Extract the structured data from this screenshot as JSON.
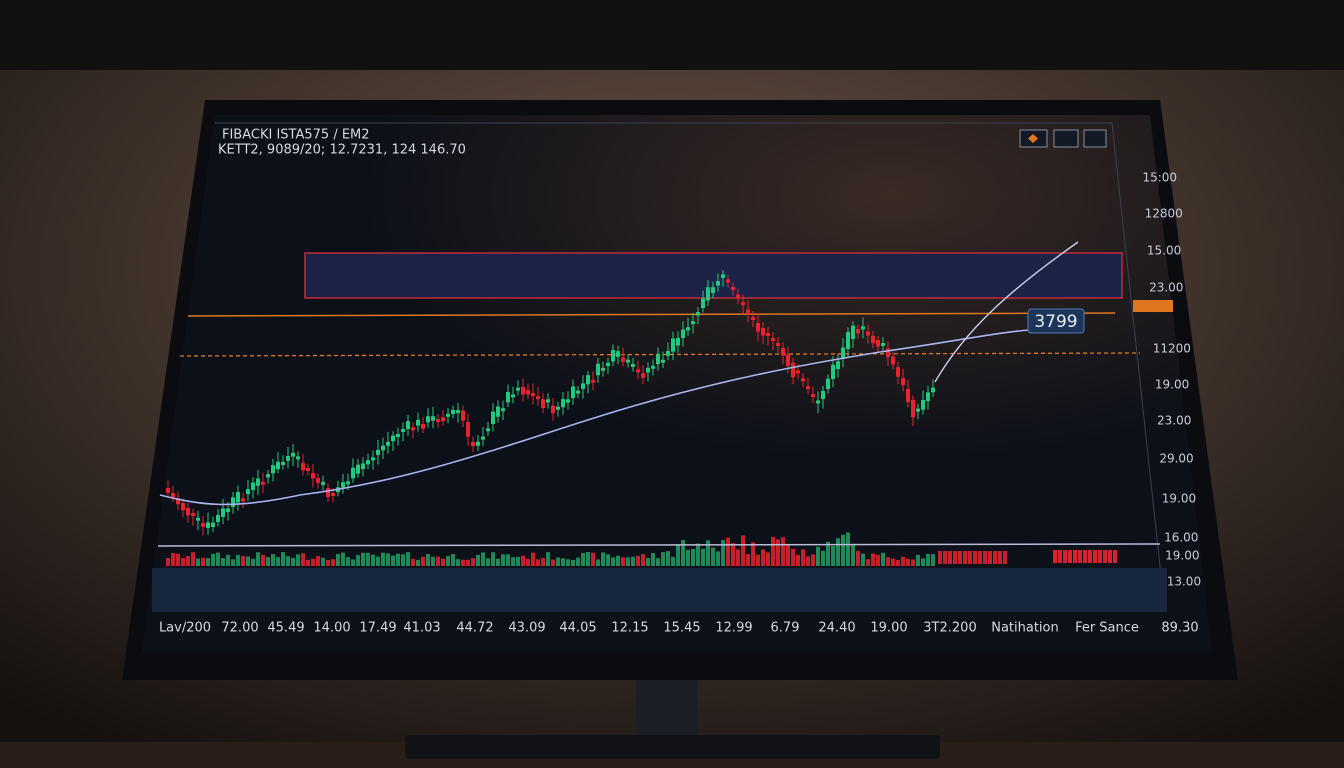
{
  "header": {
    "title": "FIBACKI ISTA575 / EM2",
    "subtitle": "KETT2, 9089/20; 12.7231, 124 146.70"
  },
  "price_axis": {
    "labels": [
      "15:00",
      "12800",
      "15.00",
      "23.00",
      "11200",
      "19.00",
      "23.00",
      "29.00",
      "19.00",
      "16.00",
      "19.00",
      "13.00"
    ]
  },
  "callout": "3799",
  "time_axis": {
    "labels": [
      "Lav/200",
      "72.00",
      "45.49",
      "14.00",
      "17.49",
      "41.03",
      "44.72",
      "43.09",
      "44.05",
      "12.15",
      "15.45",
      "12.99",
      "6.79",
      "24.40",
      "19.00",
      "3T2.200",
      "Natihation",
      "Fer Sance",
      "89.30"
    ]
  }
}
